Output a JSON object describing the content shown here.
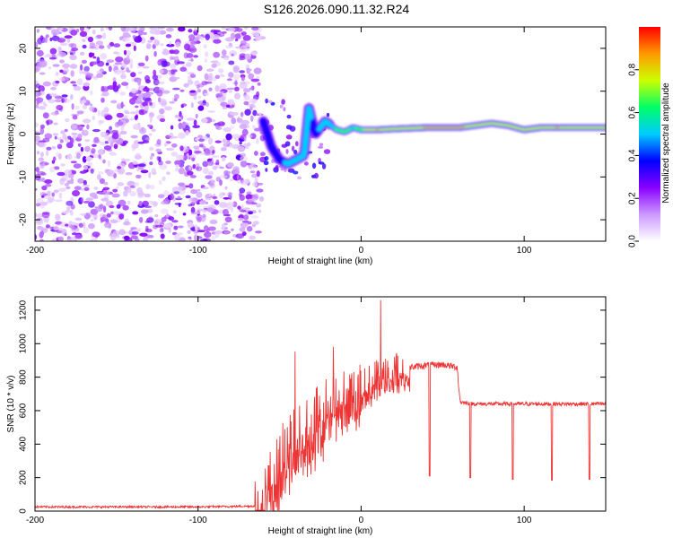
{
  "title": "S126.2026.090.11.32.R24",
  "chart_data": [
    {
      "type": "heatmap",
      "title": "S126.2026.090.11.32.R24",
      "xlabel": "Height of straight line (km)",
      "ylabel": "Frequency (Hz)",
      "xlim": [
        -200,
        150
      ],
      "ylim": [
        -25,
        25
      ],
      "xticks": [
        -200,
        -100,
        0,
        100
      ],
      "yticks": [
        -20,
        -10,
        0,
        10,
        20
      ],
      "colorbar": {
        "label": "Normalized spectral amplitude",
        "range": [
          0.0,
          1.0
        ],
        "ticks": [
          "0.0",
          "0.2",
          "0.4",
          "0.6",
          "0.8"
        ],
        "colors": [
          "#ffffff",
          "#cc99ff",
          "#8800ff",
          "#0000ff",
          "#00ccff",
          "#00ff66",
          "#ccff00",
          "#ff9900",
          "#ff0000"
        ]
      },
      "noise_region_km": [
        -200,
        -62
      ],
      "transition_region_km": [
        -62,
        -20
      ],
      "ridge": [
        {
          "x": -60,
          "f": 3,
          "amp": 0.3
        },
        {
          "x": -55,
          "f": -3,
          "amp": 0.35
        },
        {
          "x": -50,
          "f": -6,
          "amp": 0.4
        },
        {
          "x": -45,
          "f": -7,
          "amp": 0.45
        },
        {
          "x": -40,
          "f": -6,
          "amp": 0.5
        },
        {
          "x": -35,
          "f": -5,
          "amp": 0.45
        },
        {
          "x": -32,
          "f": 6,
          "amp": 0.45
        },
        {
          "x": -28,
          "f": 0,
          "amp": 0.4
        },
        {
          "x": -22,
          "f": 3,
          "amp": 0.5
        },
        {
          "x": -15,
          "f": 1,
          "amp": 0.6
        },
        {
          "x": -10,
          "f": 0.5,
          "amp": 0.65
        },
        {
          "x": -5,
          "f": 1.5,
          "amp": 0.55
        },
        {
          "x": 0,
          "f": 1,
          "amp": 0.7
        },
        {
          "x": 10,
          "f": 1,
          "amp": 0.9
        },
        {
          "x": 20,
          "f": 1.2,
          "amp": 0.75
        },
        {
          "x": 40,
          "f": 1.5,
          "amp": 0.9
        },
        {
          "x": 60,
          "f": 1.5,
          "amp": 0.95
        },
        {
          "x": 70,
          "f": 2,
          "amp": 0.75
        },
        {
          "x": 80,
          "f": 2.5,
          "amp": 0.85
        },
        {
          "x": 90,
          "f": 2,
          "amp": 0.8
        },
        {
          "x": 100,
          "f": 1,
          "amp": 0.85
        },
        {
          "x": 110,
          "f": 1.5,
          "amp": 0.75
        },
        {
          "x": 120,
          "f": 1.5,
          "amp": 0.9
        },
        {
          "x": 130,
          "f": 1.5,
          "amp": 0.8
        },
        {
          "x": 150,
          "f": 1.5,
          "amp": 0.75
        }
      ]
    },
    {
      "type": "line",
      "xlabel": "Height of straight line (km)",
      "ylabel": "SNR (10 * v/v)",
      "xlim": [
        -200,
        150
      ],
      "ylim": [
        0,
        1280
      ],
      "xticks": [
        -200,
        -100,
        0,
        100
      ],
      "yticks": [
        0,
        200,
        400,
        600,
        800,
        1000,
        1200
      ],
      "color": "#ee3333",
      "series": [
        {
          "name": "SNR",
          "x": [
            -200,
            -150,
            -100,
            -65,
            -58,
            -52,
            -45,
            -40,
            -35,
            -30,
            -25,
            -20,
            -15,
            -10,
            -5,
            0,
            5,
            10,
            15,
            20,
            25,
            30,
            40,
            50,
            59,
            60,
            61,
            70,
            80,
            90,
            100,
            110,
            120,
            130,
            140,
            150
          ],
          "y": [
            25,
            25,
            25,
            30,
            100,
            250,
            350,
            420,
            480,
            500,
            560,
            600,
            640,
            680,
            700,
            720,
            760,
            800,
            820,
            840,
            850,
            860,
            870,
            875,
            860,
            720,
            650,
            640,
            640,
            640,
            640,
            640,
            640,
            640,
            640,
            640
          ]
        }
      ],
      "annotations": {
        "peak": {
          "x": 12,
          "y": 1260
        },
        "dropouts": [
          {
            "x": 42,
            "y": 210
          },
          {
            "x": 67,
            "y": 200
          },
          {
            "x": 93,
            "y": 190
          },
          {
            "x": 117,
            "y": 185
          },
          {
            "x": 140,
            "y": 190
          }
        ]
      }
    }
  ]
}
